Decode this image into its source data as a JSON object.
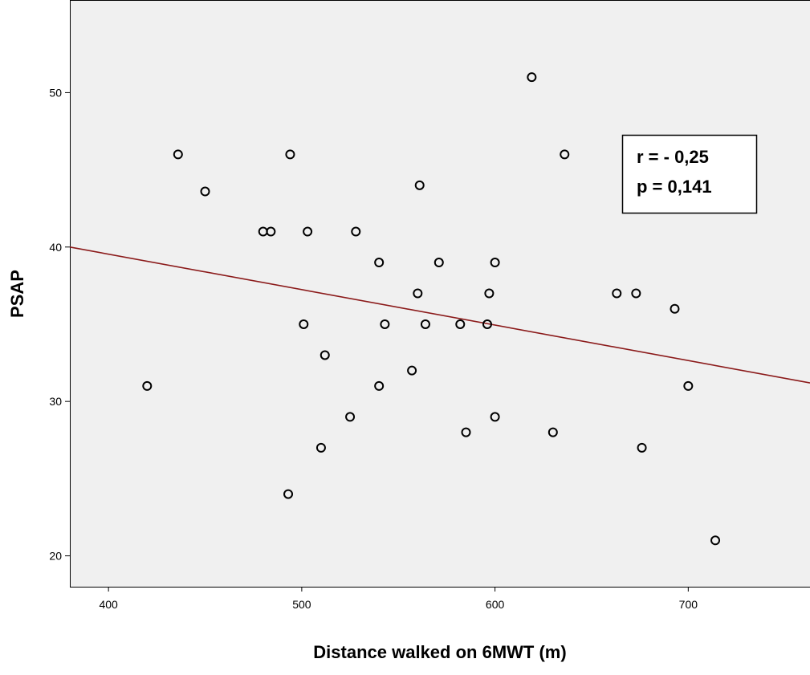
{
  "chart_data": {
    "type": "scatter",
    "title": "",
    "xlabel": "Distance walked on 6MWT (m)",
    "ylabel": "PSAP",
    "xlim": [
      380,
      763
    ],
    "ylim": [
      18,
      56
    ],
    "x_ticks": [
      400,
      500,
      600,
      700
    ],
    "y_ticks": [
      20,
      30,
      40,
      50
    ],
    "grid": false,
    "colors": {
      "plot_background": "#f0f0f0",
      "points": "#000000",
      "fit_line": "#8b1a1a"
    },
    "points": [
      {
        "x": 420,
        "y": 31
      },
      {
        "x": 436,
        "y": 46
      },
      {
        "x": 450,
        "y": 43.6
      },
      {
        "x": 480,
        "y": 41
      },
      {
        "x": 484,
        "y": 41
      },
      {
        "x": 493,
        "y": 24
      },
      {
        "x": 494,
        "y": 46
      },
      {
        "x": 501,
        "y": 35
      },
      {
        "x": 503,
        "y": 41
      },
      {
        "x": 510,
        "y": 27
      },
      {
        "x": 512,
        "y": 33
      },
      {
        "x": 525,
        "y": 29
      },
      {
        "x": 528,
        "y": 41
      },
      {
        "x": 540,
        "y": 39
      },
      {
        "x": 540,
        "y": 31
      },
      {
        "x": 543,
        "y": 35
      },
      {
        "x": 557,
        "y": 32
      },
      {
        "x": 560,
        "y": 37
      },
      {
        "x": 561,
        "y": 44
      },
      {
        "x": 564,
        "y": 35
      },
      {
        "x": 571,
        "y": 39
      },
      {
        "x": 582,
        "y": 35
      },
      {
        "x": 585,
        "y": 28
      },
      {
        "x": 596,
        "y": 35
      },
      {
        "x": 597,
        "y": 37
      },
      {
        "x": 600,
        "y": 39
      },
      {
        "x": 600,
        "y": 29
      },
      {
        "x": 619,
        "y": 51
      },
      {
        "x": 630,
        "y": 28
      },
      {
        "x": 636,
        "y": 46
      },
      {
        "x": 663,
        "y": 37
      },
      {
        "x": 673,
        "y": 37
      },
      {
        "x": 676,
        "y": 27
      },
      {
        "x": 693,
        "y": 36
      },
      {
        "x": 700,
        "y": 31
      },
      {
        "x": 714,
        "y": 21
      }
    ],
    "fit_line": {
      "x": [
        380,
        763
      ],
      "y": [
        40,
        31.2
      ]
    },
    "annotation": {
      "lines": [
        "r = - 0,25",
        "p = 0,141"
      ]
    }
  }
}
